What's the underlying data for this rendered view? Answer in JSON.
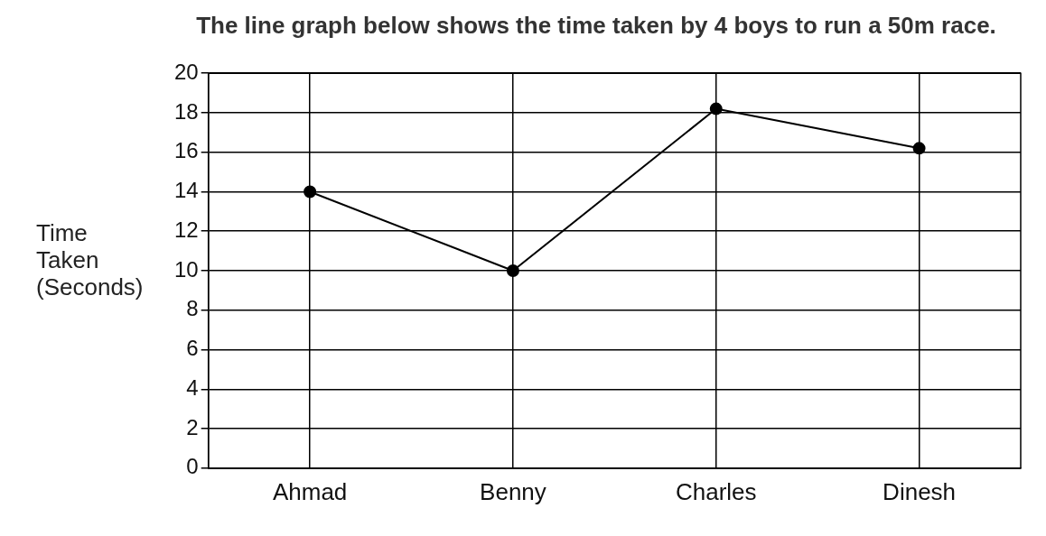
{
  "chart_data": {
    "type": "line",
    "title": "The line graph below shows the time taken by 4 boys to run a 50m race.",
    "ylabel": "Time\nTaken\n(Seconds)",
    "categories": [
      "Ahmad",
      "Benny",
      "Charles",
      "Dinesh"
    ],
    "series": [
      {
        "color": "#000000",
        "values": [
          14,
          10,
          18.2,
          16.2
        ]
      }
    ],
    "ylim": [
      0,
      20
    ],
    "yticks": [
      0,
      2,
      4,
      6,
      8,
      10,
      12,
      14,
      16,
      18,
      20
    ],
    "grid": true,
    "legend": false,
    "marker": "circle",
    "line_style": "solid"
  }
}
